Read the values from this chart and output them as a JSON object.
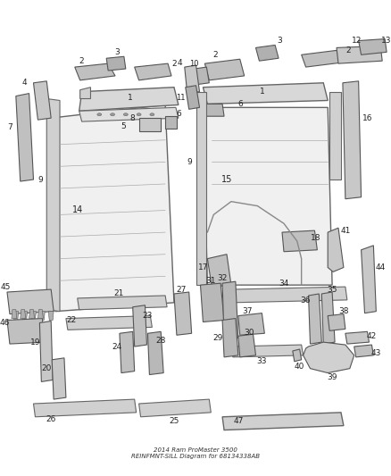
{
  "title": "2014 Ram ProMaster 3500 REINFMNT-SILL Diagram for 68134338AB",
  "bg_color": "#ffffff",
  "fig_width": 4.38,
  "fig_height": 5.33,
  "dpi": 100
}
